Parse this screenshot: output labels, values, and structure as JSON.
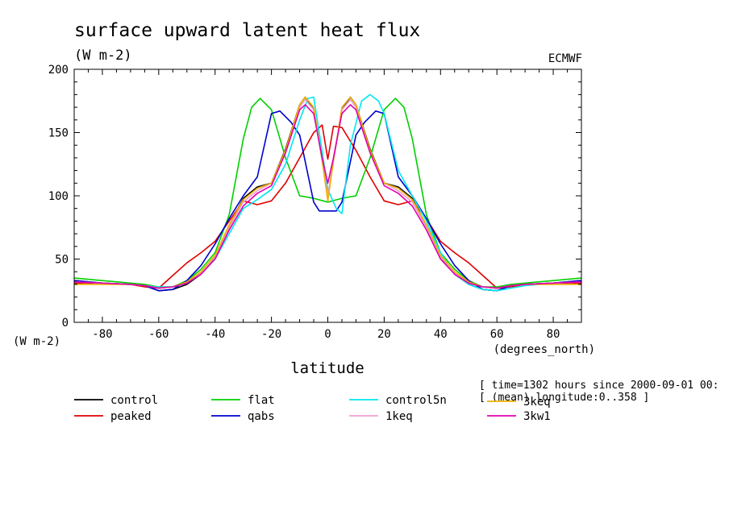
{
  "chart_data": {
    "type": "line",
    "title": "surface upward latent heat flux",
    "units_label": "(W m-2)",
    "source": "ECMWF",
    "xlabel": "latitude",
    "x_units": "(degrees_north)",
    "y_units": "(W m-2)",
    "xlim": [
      -90,
      90
    ],
    "ylim": [
      0,
      200
    ],
    "x_ticks": [
      -80,
      -60,
      -40,
      -20,
      0,
      20,
      40,
      60,
      80
    ],
    "x_tick_labels": [
      "-80",
      "-60",
      "-40",
      "-20",
      "0",
      "20",
      "40",
      "60",
      "80"
    ],
    "y_ticks": [
      0,
      50,
      100,
      150,
      200
    ],
    "y_tick_labels": [
      "0",
      "50",
      "100",
      "150",
      "200"
    ],
    "info_lines": [
      "[ time=1302 hours since 2000-09-01 00:",
      "[ (mean) longitude:0..358 ]"
    ],
    "legend_position": "bottom",
    "series": [
      {
        "name": "control",
        "color": "#000000",
        "x": [
          -90,
          -80,
          -70,
          -65,
          -60,
          -55,
          -50,
          -45,
          -40,
          -35,
          -30,
          -25,
          -20,
          -15,
          -10,
          -8,
          -5,
          -2,
          0,
          2,
          5,
          8,
          10,
          15,
          20,
          25,
          30,
          35,
          40,
          45,
          50,
          55,
          60,
          65,
          70,
          80,
          90
        ],
        "y": [
          33,
          31,
          30,
          29,
          25,
          26,
          30,
          38,
          52,
          76,
          98,
          107,
          110,
          137,
          172,
          178,
          168,
          128,
          98,
          128,
          168,
          178,
          172,
          137,
          110,
          107,
          98,
          76,
          52,
          38,
          30,
          26,
          25,
          29,
          30,
          31,
          33
        ]
      },
      {
        "name": "peaked",
        "color": "#e00000",
        "x": [
          -90,
          -80,
          -70,
          -65,
          -60,
          -55,
          -50,
          -45,
          -40,
          -35,
          -30,
          -25,
          -20,
          -15,
          -10,
          -5,
          -2,
          0,
          2,
          5,
          10,
          15,
          20,
          25,
          30,
          35,
          40,
          45,
          50,
          55,
          60,
          65,
          70,
          80,
          90
        ],
        "y": [
          31,
          31,
          30,
          28,
          27,
          37,
          47,
          55,
          64,
          80,
          96,
          93,
          96,
          110,
          130,
          150,
          156,
          129,
          155,
          154,
          136,
          115,
          96,
          93,
          96,
          82,
          64,
          55,
          47,
          37,
          27,
          28,
          30,
          31,
          31
        ]
      },
      {
        "name": "flat",
        "color": "#00d000",
        "x": [
          -90,
          -80,
          -70,
          -65,
          -60,
          -55,
          -50,
          -45,
          -40,
          -35,
          -30,
          -27,
          -24,
          -20,
          -15,
          -10,
          -5,
          0,
          5,
          10,
          15,
          20,
          24,
          27,
          30,
          35,
          40,
          45,
          50,
          55,
          60,
          65,
          70,
          80,
          90
        ],
        "y": [
          35,
          33,
          31,
          30,
          28,
          28,
          33,
          42,
          55,
          85,
          145,
          170,
          177,
          168,
          130,
          100,
          98,
          95,
          98,
          100,
          130,
          168,
          177,
          170,
          145,
          85,
          55,
          42,
          33,
          28,
          28,
          30,
          31,
          33,
          35
        ]
      },
      {
        "name": "qabs",
        "color": "#0000d0",
        "x": [
          -90,
          -80,
          -70,
          -65,
          -60,
          -55,
          -50,
          -45,
          -40,
          -35,
          -30,
          -25,
          -20,
          -17,
          -13,
          -10,
          -5,
          -3,
          0,
          3,
          5,
          10,
          13,
          17,
          20,
          25,
          30,
          35,
          40,
          45,
          50,
          55,
          60,
          65,
          70,
          80,
          90
        ],
        "y": [
          33,
          31,
          30,
          29,
          25,
          26,
          33,
          45,
          62,
          82,
          100,
          115,
          165,
          167,
          158,
          148,
          95,
          88,
          88,
          88,
          95,
          148,
          158,
          167,
          165,
          115,
          100,
          82,
          62,
          45,
          33,
          26,
          25,
          29,
          30,
          31,
          33
        ]
      },
      {
        "name": "control5n",
        "color": "#00e8f0",
        "x": [
          -90,
          -80,
          -70,
          -65,
          -60,
          -55,
          -50,
          -45,
          -40,
          -35,
          -30,
          -25,
          -20,
          -15,
          -10,
          -7,
          -5,
          -2,
          0,
          3,
          5,
          8,
          12,
          15,
          18,
          20,
          25,
          30,
          35,
          40,
          45,
          50,
          55,
          60,
          65,
          70,
          80,
          90
        ],
        "y": [
          32,
          31,
          30,
          29,
          28,
          28,
          31,
          38,
          50,
          70,
          90,
          97,
          105,
          125,
          160,
          177,
          178,
          135,
          105,
          90,
          86,
          140,
          175,
          180,
          175,
          165,
          120,
          100,
          80,
          55,
          38,
          30,
          26,
          25,
          27,
          29,
          31,
          32
        ]
      },
      {
        "name": "1keq",
        "color": "#f0a0d0",
        "x": [
          -90,
          -80,
          -70,
          -65,
          -60,
          -55,
          -50,
          -45,
          -40,
          -35,
          -30,
          -25,
          -20,
          -15,
          -10,
          -8,
          -5,
          -2,
          0,
          2,
          5,
          8,
          10,
          15,
          20,
          25,
          30,
          35,
          40,
          45,
          50,
          55,
          60,
          65,
          70,
          80,
          90
        ],
        "y": [
          32,
          31,
          30,
          29,
          27,
          28,
          31,
          39,
          52,
          75,
          95,
          104,
          110,
          135,
          170,
          176,
          168,
          128,
          100,
          128,
          168,
          176,
          170,
          135,
          110,
          104,
          95,
          75,
          52,
          39,
          31,
          28,
          27,
          29,
          30,
          31,
          32
        ]
      },
      {
        "name": "3keq",
        "color": "#f0b000",
        "x": [
          -90,
          -80,
          -70,
          -65,
          -60,
          -55,
          -50,
          -45,
          -40,
          -35,
          -30,
          -25,
          -20,
          -15,
          -10,
          -8,
          -5,
          -2,
          0,
          2,
          5,
          8,
          10,
          15,
          20,
          25,
          30,
          35,
          40,
          45,
          50,
          55,
          60,
          65,
          70,
          80,
          90
        ],
        "y": [
          30,
          30,
          30,
          29,
          27,
          28,
          32,
          40,
          53,
          77,
          97,
          106,
          110,
          136,
          172,
          178,
          170,
          128,
          96,
          128,
          170,
          178,
          172,
          136,
          110,
          106,
          97,
          77,
          53,
          40,
          32,
          28,
          27,
          29,
          30,
          30,
          30
        ]
      },
      {
        "name": "3kw1",
        "color": "#e000b0",
        "x": [
          -90,
          -80,
          -70,
          -65,
          -60,
          -55,
          -50,
          -45,
          -40,
          -35,
          -30,
          -25,
          -20,
          -15,
          -10,
          -8,
          -5,
          -2,
          0,
          2,
          5,
          8,
          10,
          15,
          20,
          25,
          30,
          35,
          40,
          45,
          50,
          55,
          60,
          65,
          70,
          80,
          90
        ],
        "y": [
          32,
          31,
          30,
          29,
          27,
          28,
          31,
          38,
          50,
          73,
          92,
          102,
          108,
          134,
          168,
          172,
          165,
          130,
          110,
          130,
          165,
          172,
          168,
          134,
          108,
          102,
          92,
          73,
          50,
          38,
          31,
          28,
          27,
          29,
          30,
          31,
          32
        ]
      }
    ]
  }
}
